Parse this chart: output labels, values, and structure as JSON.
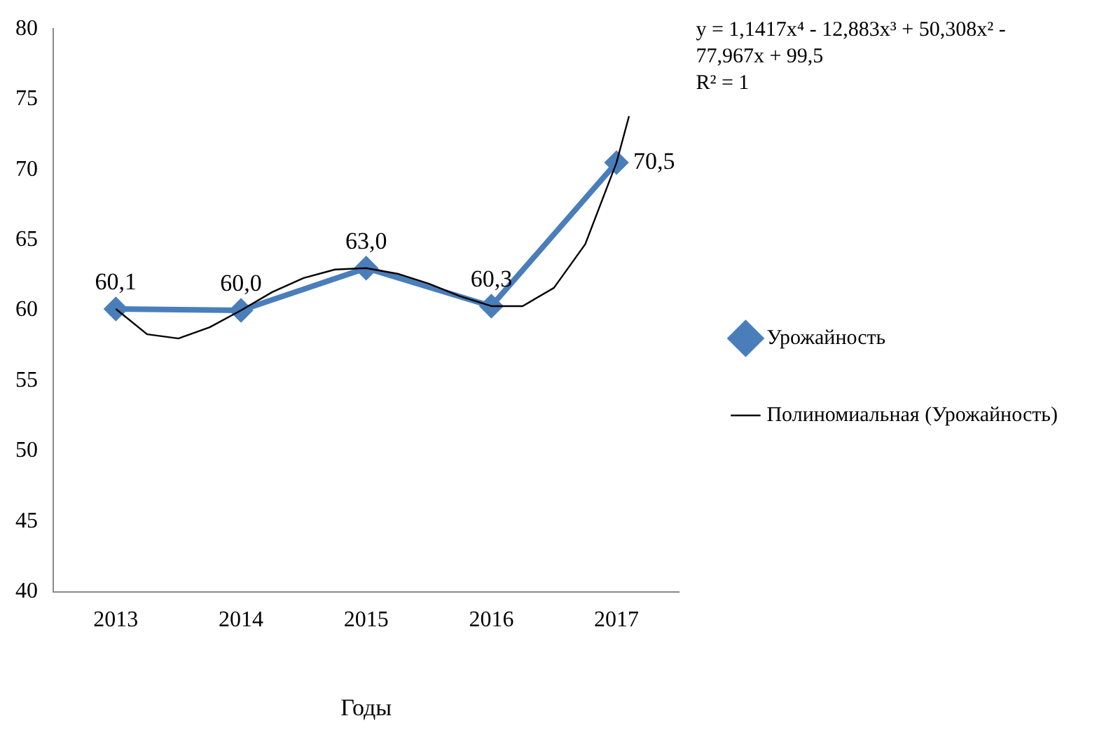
{
  "chart_data": {
    "type": "line",
    "xlabel": "Годы",
    "x": [
      2013,
      2014,
      2015,
      2016,
      2017
    ],
    "xlim": [
      2012.5,
      2017.5
    ],
    "xticks": [
      2013,
      2014,
      2015,
      2016,
      2017
    ],
    "ylim": [
      40,
      80
    ],
    "yticks": [
      40,
      45,
      50,
      55,
      60,
      65,
      70,
      75,
      80
    ],
    "series": [
      {
        "name": "Урожайность",
        "color": "#4a7ebb",
        "values": [
          60.1,
          60.0,
          63.0,
          60.3,
          70.5
        ],
        "value_labels": [
          "60,1",
          "60,0",
          "63,0",
          "60,3",
          "70,5"
        ],
        "marker": "diamond"
      },
      {
        "name": "Полиномиальная (Урожайность)",
        "type": "line",
        "color": "#000000",
        "marker": "none",
        "x": [
          2013,
          2013.25,
          2013.5,
          2013.75,
          2014,
          2014.25,
          2014.5,
          2014.75,
          2015,
          2015.25,
          2015.5,
          2015.75,
          2016,
          2016.25,
          2016.5,
          2016.75,
          2017,
          2017.1
        ],
        "values": [
          60.1,
          58.3,
          58.0,
          58.8,
          60.0,
          61.3,
          62.3,
          62.9,
          63.0,
          62.6,
          61.9,
          61.0,
          60.3,
          60.3,
          61.6,
          64.7,
          70.5,
          73.8
        ]
      }
    ],
    "annotations": [
      "y = 1,1417x⁴ - 12,883x³ + 50,308x² - 77,967x + 99,5",
      "R² = 1"
    ],
    "grid": false,
    "legend": "right",
    "line_style": "solid"
  }
}
